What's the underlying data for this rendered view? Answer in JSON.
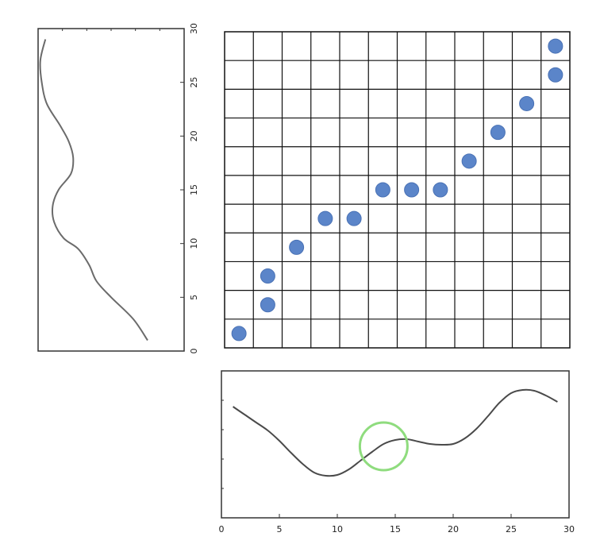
{
  "chart_data": [
    {
      "type": "line",
      "orientation": "vertical",
      "ylim": [
        0,
        30
      ],
      "yticks": [
        "0",
        "5",
        "10",
        "15",
        "20",
        "25",
        "30"
      ],
      "tick_labels_rotated": true,
      "grid": false,
      "line_color": "#6b6b6b",
      "series": [
        {
          "x": [
            1.5,
            1.3,
            1.0,
            0.8,
            0.7,
            0.55,
            0.35,
            0.22,
            0.2,
            0.28,
            0.45,
            0.48,
            0.42,
            0.3,
            0.12,
            0.05,
            0.03,
            0.1
          ],
          "y": [
            1,
            3,
            5,
            6.5,
            8,
            9.5,
            10.5,
            12,
            13.5,
            15,
            16.5,
            18,
            19.5,
            21,
            23,
            25,
            27,
            29
          ]
        }
      ]
    },
    {
      "type": "scatter",
      "xlim": [
        0,
        12
      ],
      "ylim": [
        0,
        11
      ],
      "grid": true,
      "point_color": "#5b85c9",
      "points": [
        {
          "x": 0.5,
          "y": 0.5
        },
        {
          "x": 1.5,
          "y": 1.5
        },
        {
          "x": 1.5,
          "y": 2.5
        },
        {
          "x": 2.5,
          "y": 3.5
        },
        {
          "x": 3.5,
          "y": 4.5
        },
        {
          "x": 4.5,
          "y": 4.5
        },
        {
          "x": 5.5,
          "y": 5.5
        },
        {
          "x": 6.5,
          "y": 5.5
        },
        {
          "x": 7.5,
          "y": 5.5
        },
        {
          "x": 8.5,
          "y": 6.5
        },
        {
          "x": 9.5,
          "y": 7.5
        },
        {
          "x": 10.5,
          "y": 8.5
        },
        {
          "x": 11.5,
          "y": 9.5
        },
        {
          "x": 11.5,
          "y": 10.5
        }
      ]
    },
    {
      "type": "line",
      "xlim": [
        0,
        30
      ],
      "xticks": [
        "0",
        "5",
        "10",
        "15",
        "20",
        "25",
        "30"
      ],
      "grid": false,
      "line_color": "#4a4a4a",
      "highlight": {
        "x": 14,
        "y": 0.6,
        "color": "#8fdc7e"
      },
      "series": [
        {
          "x": [
            1,
            2,
            3,
            4,
            5,
            6,
            7,
            8,
            9,
            10,
            11,
            12,
            13,
            14,
            15,
            16,
            17,
            18,
            19,
            20,
            21,
            22,
            23,
            24,
            25,
            26,
            27,
            28,
            29
          ],
          "y": [
            1.1,
            1.0,
            0.9,
            0.8,
            0.67,
            0.52,
            0.38,
            0.27,
            0.23,
            0.24,
            0.31,
            0.42,
            0.53,
            0.63,
            0.68,
            0.69,
            0.66,
            0.63,
            0.62,
            0.63,
            0.7,
            0.82,
            0.98,
            1.15,
            1.27,
            1.31,
            1.3,
            1.24,
            1.16
          ]
        }
      ]
    }
  ]
}
